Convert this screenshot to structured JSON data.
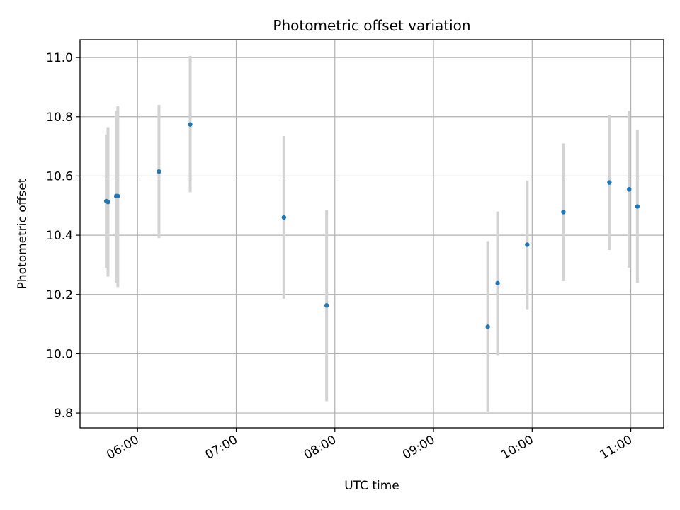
{
  "chart_data": {
    "type": "scatter",
    "title": "Photometric offset variation",
    "xlabel": "UTC time",
    "ylabel": "Photometric offset",
    "xlim": [
      "05:25",
      "11:20"
    ],
    "ylim": [
      9.75,
      11.06
    ],
    "grid": true,
    "x_ticks": [
      "06:00",
      "07:00",
      "08:00",
      "09:00",
      "10:00",
      "11:00"
    ],
    "y_ticks": [
      "9.8",
      "10.0",
      "10.2",
      "10.4",
      "10.6",
      "10.8",
      "11.0"
    ],
    "errorbar_color": "#d3d3d3",
    "point_color": "#1f77b4",
    "points": [
      {
        "time": "05:41",
        "y": 10.515,
        "err_low": 10.29,
        "err_high": 10.74
      },
      {
        "time": "05:42",
        "y": 10.512,
        "err_low": 10.26,
        "err_high": 10.765
      },
      {
        "time": "05:48",
        "y": 10.532,
        "err_low": 10.225,
        "err_high": 10.835
      },
      {
        "time": "05:47",
        "y": 10.532,
        "err_low": 10.24,
        "err_high": 10.82
      },
      {
        "time": "06:13",
        "y": 10.615,
        "err_low": 10.39,
        "err_high": 10.84
      },
      {
        "time": "06:32",
        "y": 10.774,
        "err_low": 10.545,
        "err_high": 11.005
      },
      {
        "time": "07:29",
        "y": 10.46,
        "err_low": 10.185,
        "err_high": 10.735
      },
      {
        "time": "07:55",
        "y": 10.163,
        "err_low": 9.84,
        "err_high": 10.485
      },
      {
        "time": "09:33",
        "y": 10.091,
        "err_low": 9.805,
        "err_high": 10.38
      },
      {
        "time": "09:39",
        "y": 10.238,
        "err_low": 9.995,
        "err_high": 10.48
      },
      {
        "time": "09:57",
        "y": 10.368,
        "err_low": 10.15,
        "err_high": 10.585
      },
      {
        "time": "10:19",
        "y": 10.478,
        "err_low": 10.245,
        "err_high": 10.71
      },
      {
        "time": "10:47",
        "y": 10.578,
        "err_low": 10.35,
        "err_high": 10.805
      },
      {
        "time": "10:59",
        "y": 10.555,
        "err_low": 10.29,
        "err_high": 10.82
      },
      {
        "time": "11:04",
        "y": 10.497,
        "err_low": 10.24,
        "err_high": 10.755
      }
    ]
  }
}
